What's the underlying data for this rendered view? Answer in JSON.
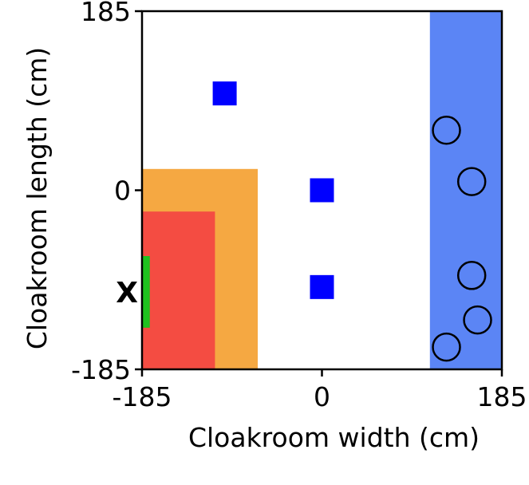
{
  "chart_data": {
    "type": "scatter",
    "title": "",
    "xlabel": "Cloakroom width (cm)",
    "ylabel": "Cloakroom length (cm)",
    "xlim": [
      -185,
      185
    ],
    "ylim": [
      -185,
      185
    ],
    "xticks": [
      "-185",
      "0",
      "185"
    ],
    "yticks": [
      "-185",
      "0",
      "185"
    ],
    "grid": false,
    "regions": [
      {
        "name": "orange-region",
        "x0": -185,
        "x1": -66,
        "y0": -185,
        "y1": 22,
        "color": "#f5a842"
      },
      {
        "name": "red-region",
        "x0": -185,
        "x1": -110,
        "y0": -185,
        "y1": -22,
        "color": "#f44c42"
      },
      {
        "name": "blue-region",
        "x0": 111,
        "x1": 185,
        "y0": -185,
        "y1": 185,
        "color": "#5b85f5"
      },
      {
        "name": "green-strip",
        "x0": -185,
        "x1": -177,
        "y0": -142,
        "y1": -68,
        "color": "#1fc21f"
      }
    ],
    "squares": {
      "color": "#0000ff",
      "points": [
        {
          "x": -100,
          "y": 100
        },
        {
          "x": 0,
          "y": 0
        },
        {
          "x": 0,
          "y": -100
        }
      ]
    },
    "circles": {
      "points": [
        {
          "x": 128,
          "y": 62
        },
        {
          "x": 154,
          "y": 9
        },
        {
          "x": 154,
          "y": -88
        },
        {
          "x": 160,
          "y": -134
        },
        {
          "x": 128,
          "y": -162
        }
      ]
    },
    "marker": {
      "label": "X",
      "x": -185,
      "y": -105
    }
  }
}
